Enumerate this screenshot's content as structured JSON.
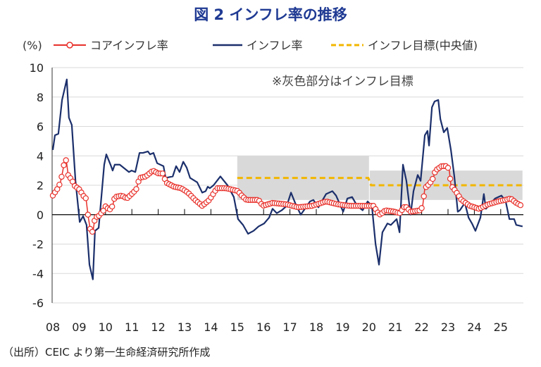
{
  "chart_data": {
    "type": "line",
    "title": "図 2  インフレ率の推移",
    "ylabel": "(%)",
    "ylim": [
      -6,
      10
    ],
    "yticks": [
      "10",
      "8",
      "6",
      "4",
      "2",
      "0",
      "-2",
      "-4",
      "-6"
    ],
    "ytick_values": [
      10,
      8,
      6,
      4,
      2,
      0,
      -2,
      -4,
      -6
    ],
    "xlim": [
      2008,
      2025.85
    ],
    "xticks": [
      "08",
      "09",
      "10",
      "11",
      "12",
      "13",
      "14",
      "15",
      "16",
      "17",
      "18",
      "19",
      "20",
      "21",
      "22",
      "23",
      "24",
      "25"
    ],
    "grid": true,
    "legend_position": "top",
    "annotation": "※灰色部分はインフレ目標",
    "source": "（出所）CEIC より第一生命経済研究所作成",
    "colors": {
      "core": "#e8302a",
      "headline": "#1b2f6b",
      "target": "#f2b600",
      "band": "#d9d9d9",
      "title": "#1f3a93"
    },
    "target_band": [
      {
        "from": 2015.0,
        "to": 2020.0,
        "low": 1,
        "high": 4,
        "mid": 2.5
      },
      {
        "from": 2020.0,
        "to": 2025.8,
        "low": 1,
        "high": 3,
        "mid": 2
      }
    ],
    "series": [
      {
        "name": "コアインフレ率",
        "key": "core",
        "points": [
          [
            2008.0,
            1.3
          ],
          [
            2008.19,
            1.8
          ],
          [
            2008.29,
            2.2
          ],
          [
            2008.37,
            2.9
          ],
          [
            2008.45,
            3.7
          ],
          [
            2008.51,
            3.7
          ],
          [
            2008.59,
            2.6
          ],
          [
            2008.72,
            2.4
          ],
          [
            2008.8,
            2.0
          ],
          [
            2009.02,
            1.7
          ],
          [
            2009.15,
            1.3
          ],
          [
            2009.26,
            1.1
          ],
          [
            2009.34,
            -0.1
          ],
          [
            2009.42,
            -1.0
          ],
          [
            2009.52,
            -1.2
          ],
          [
            2009.6,
            -0.2
          ],
          [
            2009.74,
            -0.1
          ],
          [
            2009.93,
            0.3
          ],
          [
            2010.01,
            0.6
          ],
          [
            2010.14,
            0.3
          ],
          [
            2010.27,
            0.6
          ],
          [
            2010.35,
            1.2
          ],
          [
            2010.62,
            1.3
          ],
          [
            2010.81,
            1.1
          ],
          [
            2010.99,
            1.4
          ],
          [
            2011.16,
            1.7
          ],
          [
            2011.29,
            2.5
          ],
          [
            2011.53,
            2.6
          ],
          [
            2011.8,
            3.0
          ],
          [
            2012.01,
            2.8
          ],
          [
            2012.2,
            2.8
          ],
          [
            2012.28,
            2.2
          ],
          [
            2012.6,
            1.9
          ],
          [
            2012.87,
            1.8
          ],
          [
            2013.13,
            1.5
          ],
          [
            2013.4,
            1.0
          ],
          [
            2013.67,
            0.6
          ],
          [
            2013.94,
            1.0
          ],
          [
            2014.23,
            1.8
          ],
          [
            2014.55,
            1.8
          ],
          [
            2014.82,
            1.7
          ],
          [
            2015.03,
            1.6
          ],
          [
            2015.17,
            1.3
          ],
          [
            2015.35,
            1.0
          ],
          [
            2015.81,
            1.0
          ],
          [
            2015.97,
            0.6
          ],
          [
            2016.34,
            0.8
          ],
          [
            2016.88,
            0.7
          ],
          [
            2017.3,
            0.5
          ],
          [
            2017.84,
            0.6
          ],
          [
            2018.37,
            0.9
          ],
          [
            2018.83,
            0.7
          ],
          [
            2019.28,
            0.6
          ],
          [
            2019.9,
            0.6
          ],
          [
            2020.17,
            0.6
          ],
          [
            2020.35,
            0.1
          ],
          [
            2020.43,
            0.0
          ],
          [
            2020.62,
            0.3
          ],
          [
            2020.97,
            0.2
          ],
          [
            2021.16,
            0.1
          ],
          [
            2021.37,
            0.6
          ],
          [
            2021.58,
            0.2
          ],
          [
            2021.96,
            0.3
          ],
          [
            2022.04,
            0.6
          ],
          [
            2022.12,
            1.8
          ],
          [
            2022.3,
            2.1
          ],
          [
            2022.44,
            2.5
          ],
          [
            2022.52,
            3.0
          ],
          [
            2022.76,
            3.3
          ],
          [
            2022.97,
            3.3
          ],
          [
            2023.05,
            3.0
          ],
          [
            2023.11,
            2.0
          ],
          [
            2023.29,
            1.6
          ],
          [
            2023.51,
            1.0
          ],
          [
            2023.83,
            0.6
          ],
          [
            2024.18,
            0.4
          ],
          [
            2024.52,
            0.7
          ],
          [
            2024.9,
            0.9
          ],
          [
            2025.17,
            1.0
          ],
          [
            2025.38,
            1.1
          ],
          [
            2025.59,
            0.8
          ],
          [
            2025.8,
            0.6
          ]
        ]
      },
      {
        "name": "インフレ率",
        "key": "headline",
        "points": [
          [
            2008.0,
            4.4
          ],
          [
            2008.08,
            5.4
          ],
          [
            2008.21,
            5.5
          ],
          [
            2008.35,
            7.8
          ],
          [
            2008.53,
            9.2
          ],
          [
            2008.61,
            6.6
          ],
          [
            2008.72,
            6.1
          ],
          [
            2008.86,
            2.3
          ],
          [
            2009.02,
            -0.5
          ],
          [
            2009.15,
            -0.1
          ],
          [
            2009.28,
            -0.7
          ],
          [
            2009.39,
            -3.4
          ],
          [
            2009.52,
            -4.4
          ],
          [
            2009.6,
            -1.1
          ],
          [
            2009.74,
            -0.9
          ],
          [
            2009.95,
            3.4
          ],
          [
            2010.03,
            4.1
          ],
          [
            2010.19,
            3.4
          ],
          [
            2010.27,
            3.0
          ],
          [
            2010.35,
            3.4
          ],
          [
            2010.54,
            3.4
          ],
          [
            2010.89,
            2.9
          ],
          [
            2010.99,
            3.0
          ],
          [
            2011.13,
            2.9
          ],
          [
            2011.29,
            4.2
          ],
          [
            2011.42,
            4.2
          ],
          [
            2011.61,
            4.3
          ],
          [
            2011.69,
            4.1
          ],
          [
            2011.82,
            4.2
          ],
          [
            2011.96,
            3.5
          ],
          [
            2012.2,
            3.3
          ],
          [
            2012.28,
            2.5
          ],
          [
            2012.55,
            2.6
          ],
          [
            2012.68,
            3.3
          ],
          [
            2012.81,
            2.9
          ],
          [
            2012.95,
            3.6
          ],
          [
            2013.08,
            3.2
          ],
          [
            2013.21,
            2.5
          ],
          [
            2013.48,
            2.2
          ],
          [
            2013.67,
            1.5
          ],
          [
            2013.8,
            1.6
          ],
          [
            2013.88,
            1.9
          ],
          [
            2013.96,
            1.8
          ],
          [
            2014.1,
            2.0
          ],
          [
            2014.36,
            2.6
          ],
          [
            2014.63,
            2.0
          ],
          [
            2014.87,
            1.2
          ],
          [
            2015.03,
            -0.3
          ],
          [
            2015.22,
            -0.7
          ],
          [
            2015.41,
            -1.3
          ],
          [
            2015.62,
            -1.1
          ],
          [
            2015.81,
            -0.8
          ],
          [
            2016.02,
            -0.6
          ],
          [
            2016.21,
            -0.2
          ],
          [
            2016.34,
            0.4
          ],
          [
            2016.5,
            0.1
          ],
          [
            2016.69,
            0.3
          ],
          [
            2016.88,
            0.6
          ],
          [
            2017.04,
            1.5
          ],
          [
            2017.22,
            0.7
          ],
          [
            2017.41,
            0.0
          ],
          [
            2017.57,
            0.4
          ],
          [
            2017.76,
            0.9
          ],
          [
            2017.89,
            1.0
          ],
          [
            2018.08,
            0.5
          ],
          [
            2018.37,
            1.4
          ],
          [
            2018.61,
            1.6
          ],
          [
            2018.75,
            1.3
          ],
          [
            2019.02,
            0.2
          ],
          [
            2019.18,
            1.1
          ],
          [
            2019.36,
            1.2
          ],
          [
            2019.55,
            0.6
          ],
          [
            2019.76,
            0.3
          ],
          [
            2019.95,
            0.9
          ],
          [
            2020.11,
            0.6
          ],
          [
            2020.25,
            -2.0
          ],
          [
            2020.38,
            -3.4
          ],
          [
            2020.51,
            -1.2
          ],
          [
            2020.7,
            -0.6
          ],
          [
            2020.83,
            -0.7
          ],
          [
            2021.05,
            -0.3
          ],
          [
            2021.16,
            -1.2
          ],
          [
            2021.29,
            3.4
          ],
          [
            2021.42,
            2.3
          ],
          [
            2021.58,
            0.0
          ],
          [
            2021.69,
            1.6
          ],
          [
            2021.85,
            2.7
          ],
          [
            2021.96,
            2.3
          ],
          [
            2022.12,
            5.4
          ],
          [
            2022.22,
            5.7
          ],
          [
            2022.28,
            4.7
          ],
          [
            2022.39,
            7.3
          ],
          [
            2022.49,
            7.7
          ],
          [
            2022.63,
            7.8
          ],
          [
            2022.71,
            6.5
          ],
          [
            2022.84,
            5.6
          ],
          [
            2022.97,
            5.9
          ],
          [
            2023.11,
            4.4
          ],
          [
            2023.24,
            2.6
          ],
          [
            2023.37,
            0.2
          ],
          [
            2023.45,
            0.3
          ],
          [
            2023.64,
            0.8
          ],
          [
            2023.78,
            -0.2
          ],
          [
            2023.91,
            -0.6
          ],
          [
            2024.04,
            -1.1
          ],
          [
            2024.23,
            -0.2
          ],
          [
            2024.36,
            1.4
          ],
          [
            2024.44,
            0.4
          ],
          [
            2024.63,
            0.8
          ],
          [
            2024.79,
            1.1
          ],
          [
            2025.03,
            1.3
          ],
          [
            2025.19,
            0.9
          ],
          [
            2025.33,
            -0.3
          ],
          [
            2025.51,
            -0.3
          ],
          [
            2025.59,
            -0.7
          ],
          [
            2025.83,
            -0.8
          ]
        ]
      },
      {
        "name": "インフレ目標(中央値)",
        "key": "target"
      }
    ]
  }
}
